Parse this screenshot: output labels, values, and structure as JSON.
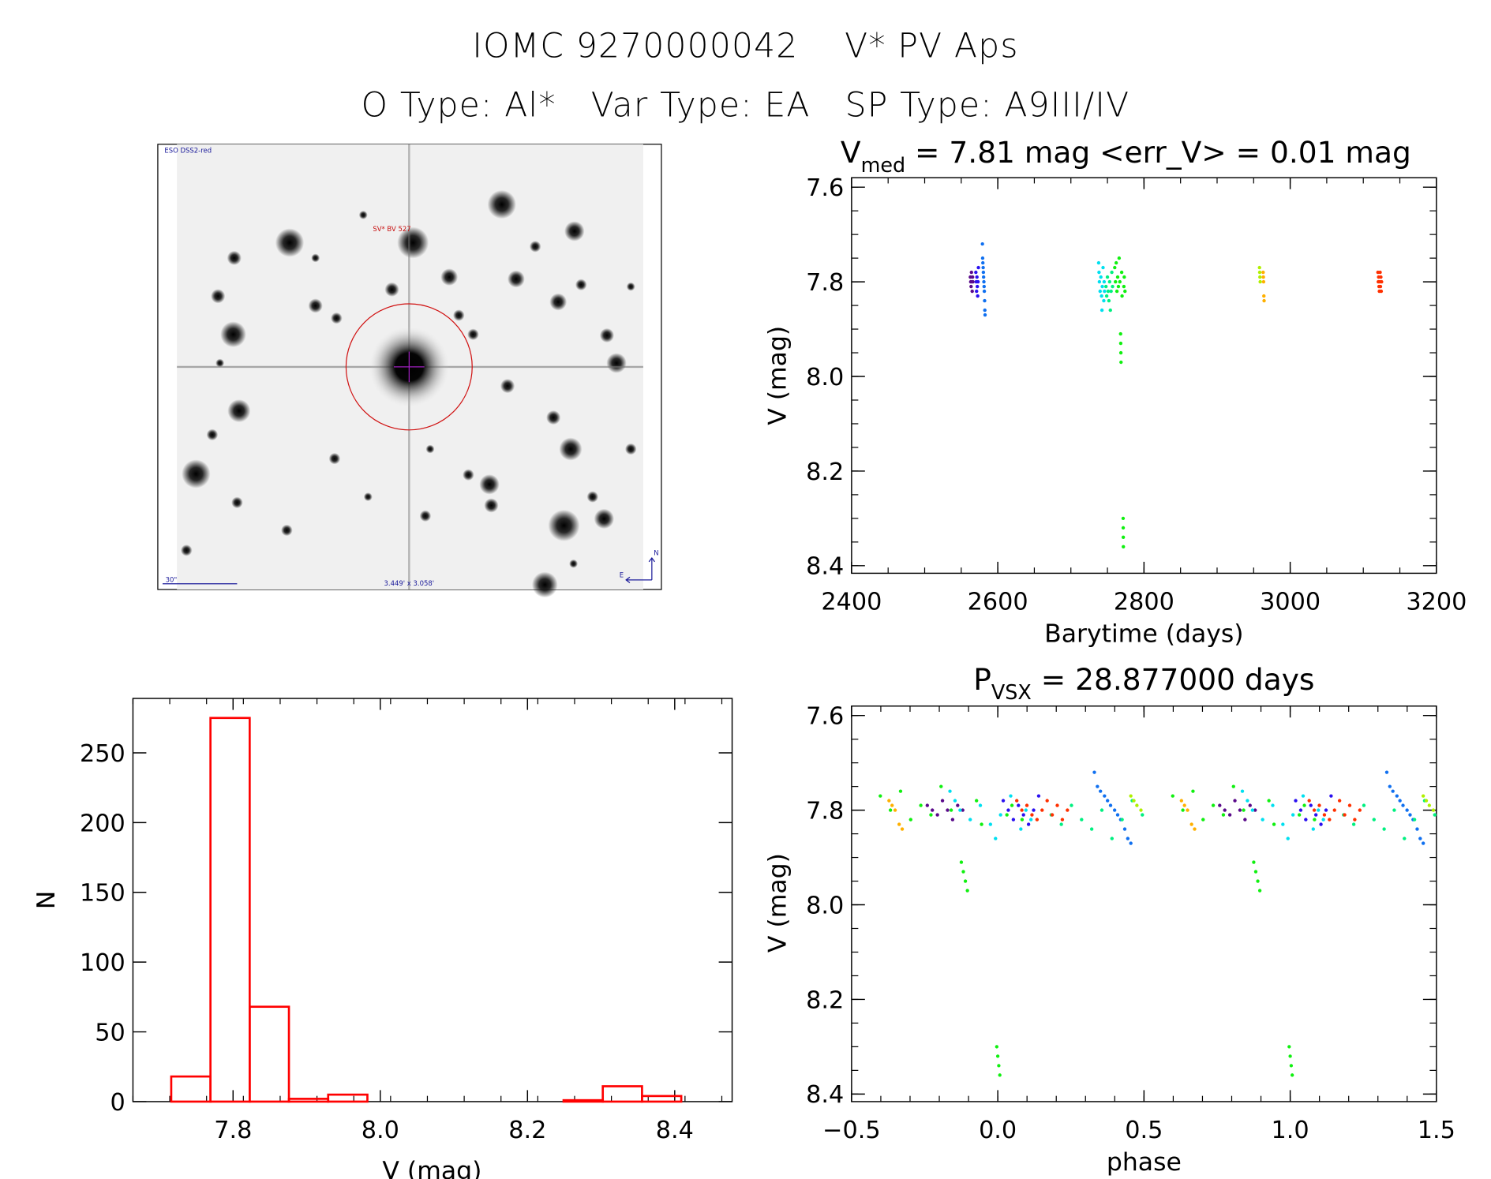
{
  "header": {
    "title": "IOMC 9270000042    V* PV Aps",
    "subtitle": "O Type: Al*   Var Type: EA   SP Type: A9III/IV"
  },
  "finder_image": {
    "survey_label": "ESO DSS2-red",
    "object_label": "SV* BV 527",
    "scale_label": "30\"",
    "fov_label": "3.449' x 3.058'",
    "north_label": "N",
    "east_label": "E"
  },
  "chart_data": [
    {
      "id": "light_curve",
      "type": "scatter",
      "title_main": "V",
      "title_sub": "med",
      "title_rest": " = 7.81 mag <err_V> = 0.01 mag",
      "xlabel": "Barytime (days)",
      "ylabel": "V (mag)",
      "xlim": [
        2400,
        3200
      ],
      "ylim": [
        8.416,
        7.58
      ],
      "xticks": [
        "2400",
        "2600",
        "2800",
        "3000",
        "3200"
      ],
      "xtick_values": [
        2400,
        2600,
        2800,
        3000,
        3200
      ],
      "yticks": [
        "7.6",
        "7.8",
        "8.0",
        "8.2",
        "8.4"
      ],
      "ytick_values": [
        7.6,
        7.8,
        8.0,
        8.2,
        8.4
      ],
      "series": [
        {
          "name": "g1",
          "color": "#5a0a8a",
          "points": [
            [
              2562.5,
              7.79
            ],
            [
              2563,
              7.8
            ],
            [
              2563.5,
              7.81
            ],
            [
              2564,
              7.78
            ],
            [
              2564.5,
              7.8
            ],
            [
              2565,
              7.82
            ],
            [
              2565.5,
              7.79
            ],
            [
              2566,
              7.8
            ]
          ]
        },
        {
          "name": "g2",
          "color": "#2a10f0",
          "points": [
            [
              2570,
              7.78
            ],
            [
              2570.5,
              7.8
            ],
            [
              2571,
              7.82
            ],
            [
              2571.5,
              7.79
            ],
            [
              2572,
              7.81
            ],
            [
              2572.5,
              7.83
            ],
            [
              2573,
              7.8
            ],
            [
              2573.5,
              7.77
            ]
          ]
        },
        {
          "name": "g3",
          "color": "#1070f0",
          "points": [
            [
              2579,
              7.72
            ],
            [
              2579.3,
              7.75
            ],
            [
              2579.6,
              7.76
            ],
            [
              2580,
              7.77
            ],
            [
              2580.3,
              7.78
            ],
            [
              2580.6,
              7.79
            ],
            [
              2581,
              7.8
            ],
            [
              2581.3,
              7.81
            ],
            [
              2581.6,
              7.82
            ],
            [
              2582,
              7.84
            ],
            [
              2582.3,
              7.86
            ],
            [
              2582.6,
              7.87
            ]
          ]
        },
        {
          "name": "g4",
          "color": "#00e0f0",
          "points": [
            [
              2738,
              7.76
            ],
            [
              2738.5,
              7.78
            ],
            [
              2739,
              7.8
            ],
            [
              2740,
              7.82
            ],
            [
              2741,
              7.79
            ],
            [
              2742,
              7.83
            ],
            [
              2742.5,
              7.86
            ],
            [
              2743,
              7.81
            ],
            [
              2744,
              7.77
            ],
            [
              2745,
              7.84
            ],
            [
              2745.5,
              7.8
            ],
            [
              2746,
              7.82
            ]
          ]
        },
        {
          "name": "g5",
          "color": "#00f080",
          "points": [
            [
              2748,
              7.81
            ],
            [
              2749,
              7.83
            ],
            [
              2750,
              7.79
            ],
            [
              2751,
              7.82
            ],
            [
              2752,
              7.84
            ],
            [
              2753,
              7.8
            ],
            [
              2754,
              7.86
            ],
            [
              2755,
              7.82
            ],
            [
              2756,
              7.78
            ],
            [
              2757,
              7.81
            ]
          ]
        },
        {
          "name": "g6",
          "color": "#10f010",
          "points": [
            [
              2760,
              7.77
            ],
            [
              2761,
              7.8
            ],
            [
              2762,
              7.76
            ],
            [
              2763,
              7.82
            ],
            [
              2764,
              7.79
            ],
            [
              2765,
              7.81
            ],
            [
              2766,
              7.75
            ],
            [
              2767,
              7.8
            ],
            [
              2768,
              7.91
            ],
            [
              2768.2,
              7.93
            ],
            [
              2768.4,
              7.95
            ],
            [
              2768.6,
              7.97
            ],
            [
              2769.5,
              7.78
            ],
            [
              2770,
              7.83
            ],
            [
              2771.5,
              8.3
            ],
            [
              2771.6,
              8.32
            ],
            [
              2771.7,
              8.34
            ],
            [
              2771.8,
              8.36
            ],
            [
              2772.5,
              7.81
            ],
            [
              2773,
              7.79
            ],
            [
              2774,
              7.82
            ]
          ]
        },
        {
          "name": "g7",
          "color": "#b0f000",
          "points": [
            [
              2958,
              7.77
            ],
            [
              2958.3,
              7.78
            ],
            [
              2958.6,
              7.79
            ],
            [
              2959,
              7.8
            ]
          ]
        },
        {
          "name": "g8",
          "color": "#ffb000",
          "points": [
            [
              2963,
              7.78
            ],
            [
              2963.3,
              7.79
            ],
            [
              2963.6,
              7.8
            ],
            [
              2964,
              7.83
            ],
            [
              2964.3,
              7.84
            ]
          ]
        },
        {
          "name": "g9",
          "color": "#ff3000",
          "points": [
            [
              3120,
              7.78
            ],
            [
              3120.5,
              7.8
            ],
            [
              3121,
              7.79
            ],
            [
              3121.5,
              7.81
            ],
            [
              3122,
              7.82
            ],
            [
              3122.5,
              7.8
            ],
            [
              3123,
              7.78
            ],
            [
              3123.5,
              7.81
            ],
            [
              3124,
              7.79
            ],
            [
              3124.5,
              7.82
            ],
            [
              3125,
              7.8
            ]
          ]
        }
      ]
    },
    {
      "id": "histogram",
      "type": "bar",
      "xlabel": "V (mag)",
      "ylabel": "N",
      "xlim": [
        7.664,
        8.478
      ],
      "ylim": [
        0,
        289
      ],
      "bin_start": 7.716,
      "bin_width": 0.0533,
      "values": [
        18,
        275,
        68,
        2,
        5,
        0,
        0,
        0,
        0,
        0,
        1,
        11,
        4
      ],
      "color": "#ff0000",
      "xticks": [
        "7.8",
        "8.0",
        "8.2",
        "8.4"
      ],
      "xtick_values": [
        7.8,
        8.0,
        8.2,
        8.4
      ],
      "yticks": [
        "0",
        "50",
        "100",
        "150",
        "200",
        "250"
      ],
      "ytick_values": [
        0,
        50,
        100,
        150,
        200,
        250
      ]
    },
    {
      "id": "phase_curve",
      "type": "scatter",
      "title_main": "P",
      "title_sub": "VSX",
      "title_rest": " = 28.877000 days",
      "period_days": 28.877,
      "epoch_days": 2771.6,
      "xlabel": "phase",
      "ylabel": "V (mag)",
      "xlim": [
        -0.5,
        1.5
      ],
      "ylim": [
        8.416,
        7.58
      ],
      "xticks": [
        "−0.5",
        "0.0",
        "0.5",
        "1.0",
        "1.5"
      ],
      "xtick_values": [
        -0.5,
        0.0,
        0.5,
        1.0,
        1.5
      ],
      "yticks": [
        "7.6",
        "7.8",
        "8.0",
        "8.2",
        "8.4"
      ],
      "ytick_values": [
        7.6,
        7.8,
        8.0,
        8.2,
        8.4
      ],
      "source": "light_curve points folded on period_days, shown at phase and phase+1"
    }
  ]
}
